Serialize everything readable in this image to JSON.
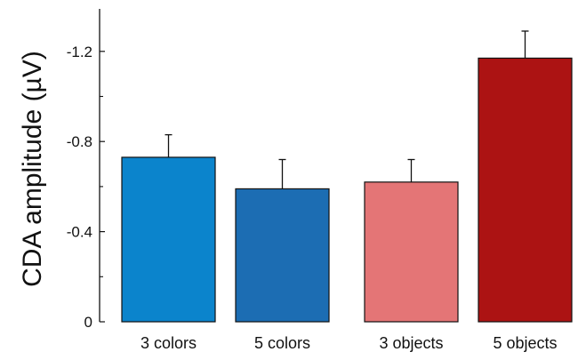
{
  "chart_data": {
    "type": "bar",
    "title": "",
    "xlabel": "",
    "ylabel": "CDA amplitude (µV)",
    "categories": [
      "3 colors",
      "5 colors",
      "3 objects",
      "5 objects"
    ],
    "values": [
      -0.73,
      -0.59,
      -0.62,
      -1.17
    ],
    "errors": [
      0.1,
      0.13,
      0.1,
      0.12
    ],
    "colors": [
      "#0b84cc",
      "#1c6db3",
      "#e47576",
      "#ac1313"
    ],
    "ylim": [
      0,
      -1.4
    ],
    "y_inverted": true,
    "yticks": [
      0,
      -0.4,
      -0.8,
      -1.2
    ],
    "ytick_labels": [
      "0",
      "-0.4",
      "-0.8",
      "-1.2"
    ],
    "grid": false,
    "legend": "none"
  }
}
